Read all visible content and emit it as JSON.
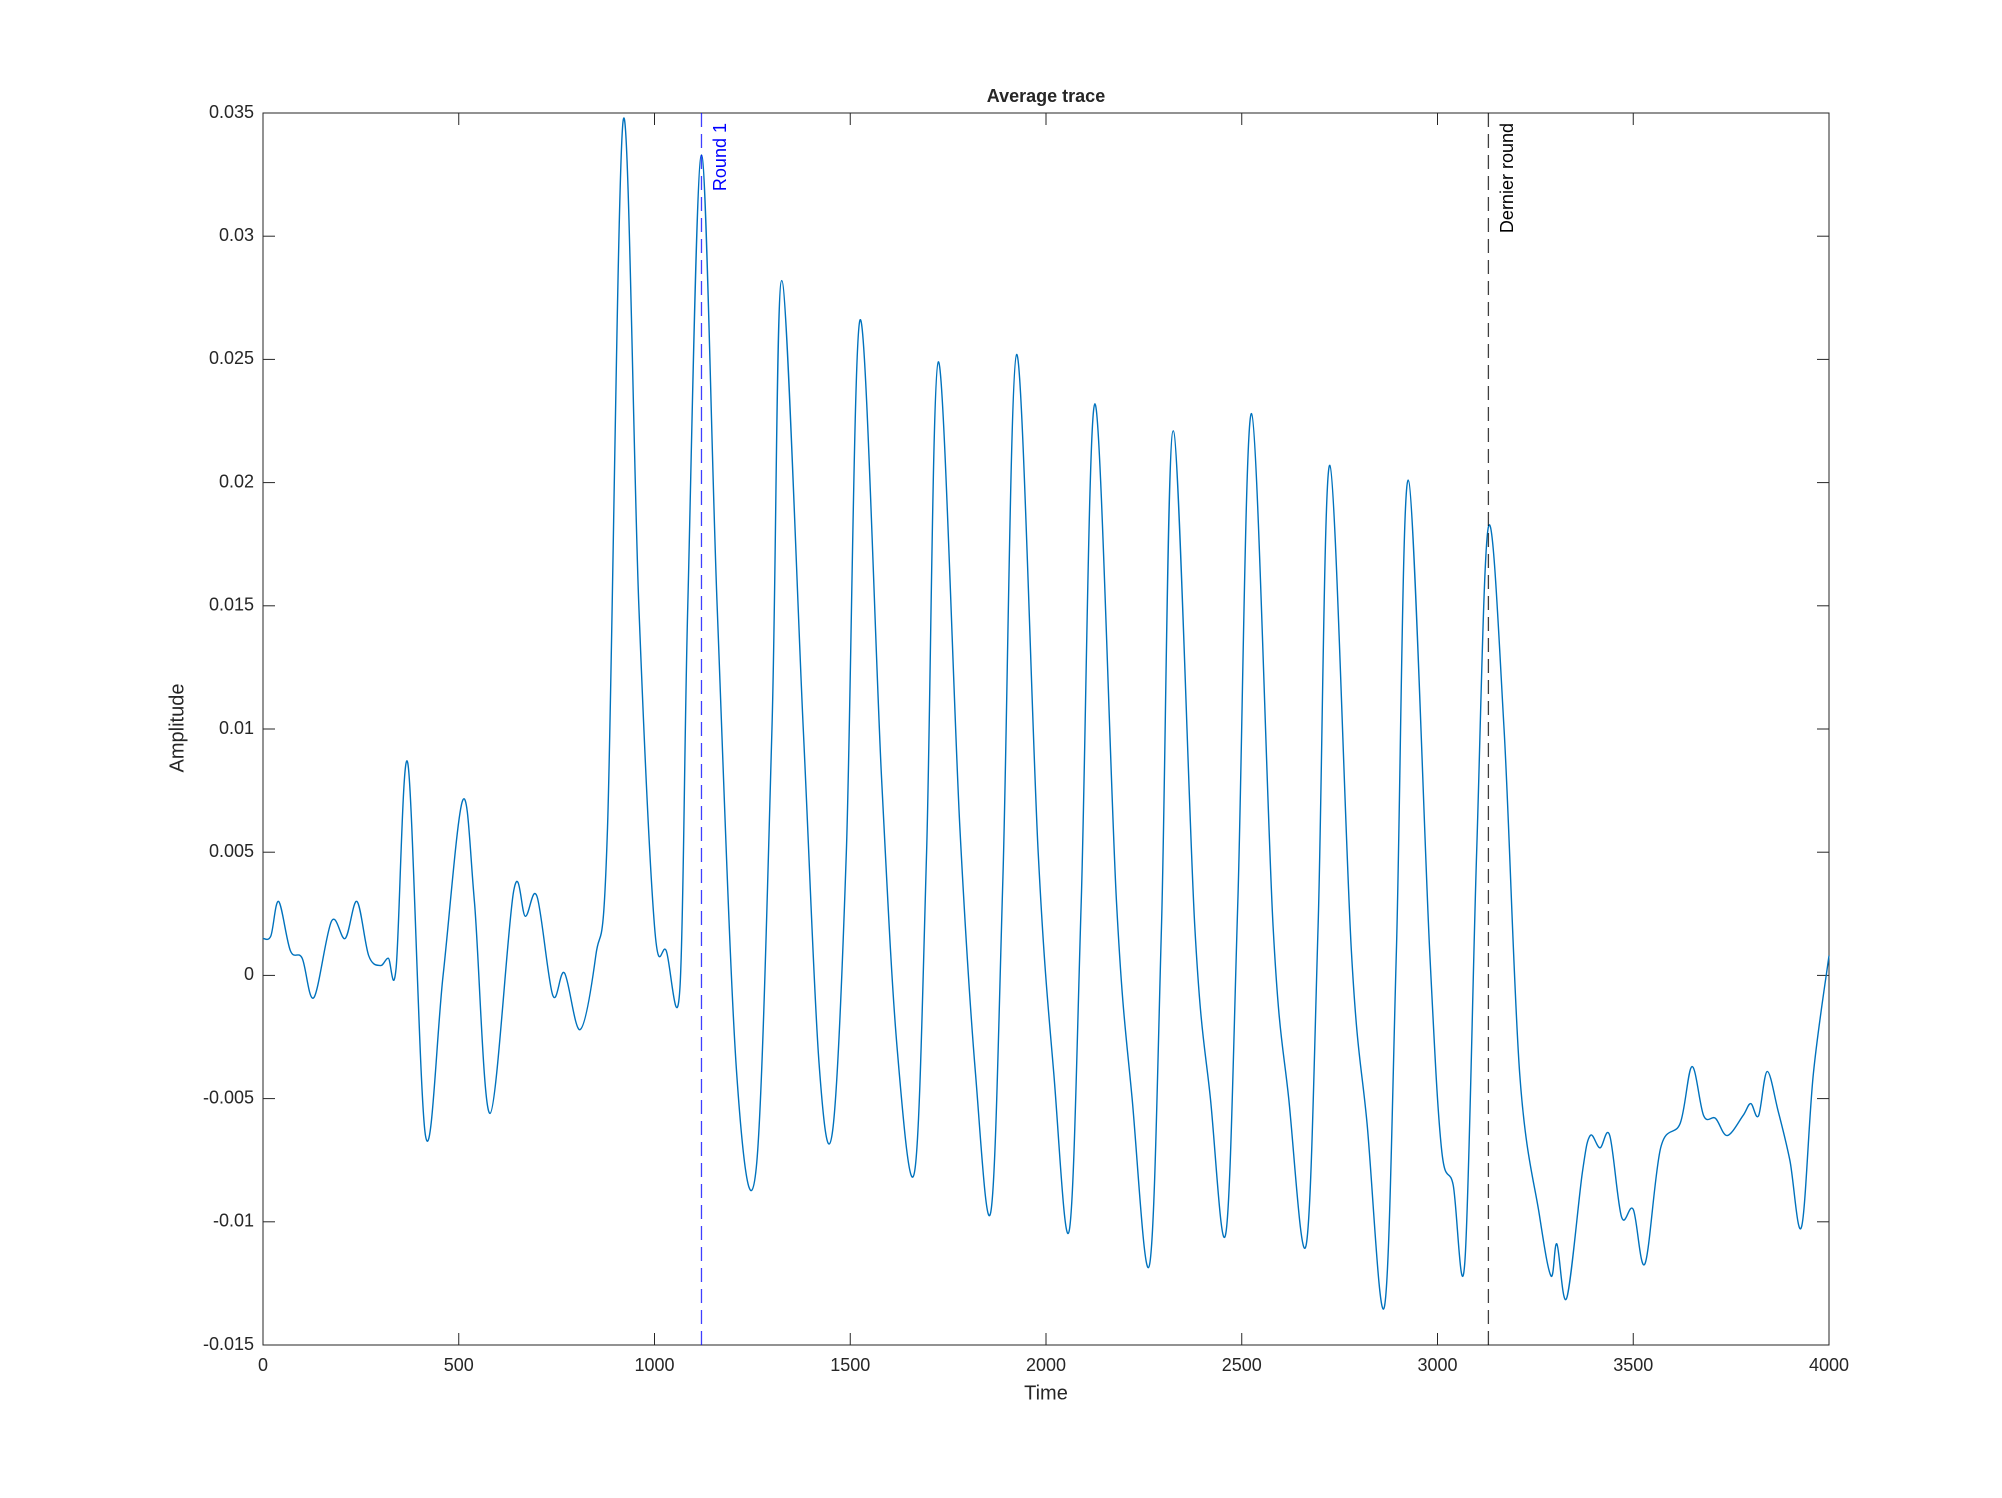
{
  "chart_data": {
    "type": "line",
    "title": "Average trace",
    "xlabel": "Time",
    "ylabel": "Amplitude",
    "xlim": [
      0,
      4000
    ],
    "ylim": [
      -0.015,
      0.035
    ],
    "xticks": [
      0,
      500,
      1000,
      1500,
      2000,
      2500,
      3000,
      3500,
      4000
    ],
    "yticks": [
      -0.015,
      -0.01,
      -0.005,
      0,
      0.005,
      0.01,
      0.015,
      0.02,
      0.025,
      0.03,
      0.035
    ],
    "grid": false,
    "series": [
      {
        "color": "#0072bd",
        "x": [
          0,
          20,
          40,
          70,
          100,
          130,
          175,
          210,
          240,
          270,
          300,
          320,
          340,
          370,
          415,
          460,
          510,
          540,
          580,
          640,
          670,
          700,
          740,
          770,
          810,
          850,
          880,
          920,
          960,
          1000,
          1030,
          1065,
          1085,
          1120,
          1160,
          1210,
          1260,
          1300,
          1325,
          1380,
          1420,
          1455,
          1490,
          1525,
          1580,
          1620,
          1665,
          1695,
          1725,
          1780,
          1820,
          1860,
          1890,
          1925,
          1980,
          2020,
          2060,
          2090,
          2125,
          2180,
          2220,
          2265,
          2295,
          2325,
          2380,
          2420,
          2460,
          2490,
          2525,
          2580,
          2620,
          2665,
          2695,
          2725,
          2780,
          2820,
          2865,
          2895,
          2925,
          2980,
          3010,
          3040,
          3070,
          3100,
          3130,
          3170,
          3210,
          3260,
          3290,
          3305,
          3330,
          3370,
          3390,
          3415,
          3440,
          3470,
          3500,
          3530,
          3570,
          3620,
          3650,
          3680,
          3710,
          3740,
          3780,
          3800,
          3820,
          3842,
          3870,
          3900,
          3930,
          3960,
          4000
        ],
        "values": [
          0.0015,
          0.0016,
          0.003,
          0.001,
          0.0007,
          -0.0009,
          0.0022,
          0.0015,
          0.003,
          0.0008,
          0.0004,
          0.0007,
          0.0003,
          0.0086,
          -0.0065,
          0.0,
          0.0071,
          0.003,
          -0.0056,
          0.0034,
          0.0024,
          0.0032,
          -0.0008,
          0.0001,
          -0.0022,
          0.0008,
          0.006,
          0.0347,
          0.015,
          0.002,
          0.001,
          -0.0005,
          0.015,
          0.0333,
          0.015,
          -0.004,
          -0.0078,
          0.01,
          0.0282,
          0.01,
          -0.0035,
          -0.0063,
          0.005,
          0.0266,
          0.008,
          -0.003,
          -0.0079,
          0.005,
          0.0249,
          0.006,
          -0.004,
          -0.0095,
          0.004,
          0.0252,
          0.005,
          -0.004,
          -0.0103,
          0.003,
          0.0232,
          0.003,
          -0.005,
          -0.0117,
          0.002,
          0.0221,
          0.002,
          -0.005,
          -0.0104,
          0.003,
          0.0228,
          0.002,
          -0.005,
          -0.0109,
          0.002,
          0.0207,
          0.001,
          -0.006,
          -0.0134,
          0.001,
          0.0201,
          0.001,
          -0.007,
          -0.0085,
          -0.0116,
          0.005,
          0.0182,
          0.01,
          -0.004,
          -0.0097,
          -0.0122,
          -0.0109,
          -0.0131,
          -0.008,
          -0.0065,
          -0.007,
          -0.0065,
          -0.0098,
          -0.0095,
          -0.0117,
          -0.007,
          -0.006,
          -0.0037,
          -0.0057,
          -0.0058,
          -0.0065,
          -0.0057,
          -0.0052,
          -0.0057,
          -0.0039,
          -0.0055,
          -0.0075,
          -0.0102,
          -0.004,
          0.0008
        ]
      }
    ],
    "annotations": [
      {
        "x": 1120,
        "label": "Round 1",
        "color": "#0000ff"
      },
      {
        "x": 3130,
        "label": "Dernier round",
        "color": "#000000"
      }
    ]
  }
}
